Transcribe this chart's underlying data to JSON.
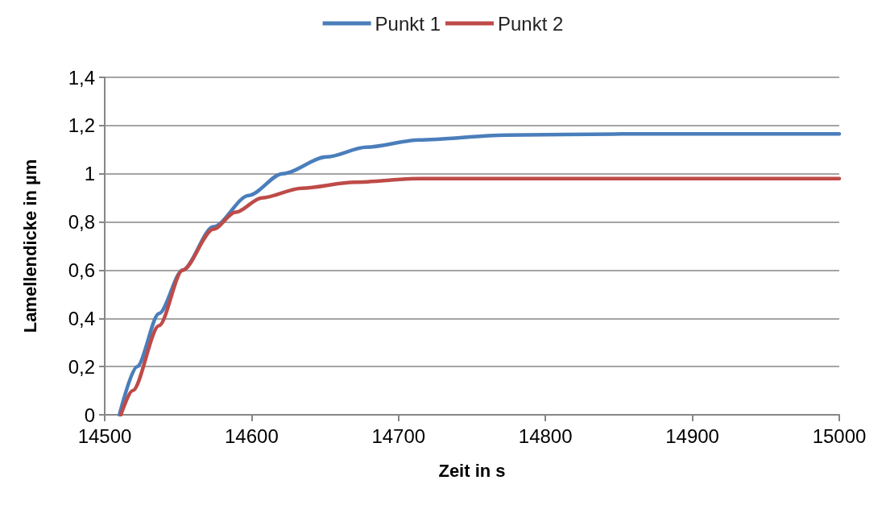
{
  "chart_data": {
    "type": "line",
    "xlabel": "Zeit in s",
    "ylabel": "Lamellendicke in µm",
    "xlim": [
      14500,
      15000
    ],
    "xticks": [
      14500,
      14600,
      14700,
      14800,
      14900,
      15000
    ],
    "ylim": [
      0,
      1.4
    ],
    "yticks": [
      {
        "value": 0,
        "label": "0"
      },
      {
        "value": 0.2,
        "label": "0,2"
      },
      {
        "value": 0.4,
        "label": "0,4"
      },
      {
        "value": 0.6,
        "label": "0,6"
      },
      {
        "value": 0.8,
        "label": "0,8"
      },
      {
        "value": 1,
        "label": "1"
      },
      {
        "value": 1.2,
        "label": "1,2"
      },
      {
        "value": 1.4,
        "label": "1,4"
      }
    ],
    "grid": "y",
    "legend": "top",
    "marker": "none",
    "line_style": "solid",
    "series": [
      {
        "name": "Punkt 1",
        "color": "#4a7ebb",
        "x": [
          14510,
          14522,
          14537,
          14553,
          14574,
          14598,
          14621,
          14651,
          14678,
          14714,
          14773,
          14852,
          14930,
          15000
        ],
        "values": [
          0,
          0.2,
          0.42,
          0.6,
          0.78,
          0.91,
          1,
          1.07,
          1.11,
          1.14,
          1.16,
          1.165,
          1.165,
          1.165
        ]
      },
      {
        "name": "Punkt 2",
        "color": "#be4b48",
        "x": [
          14511,
          14519,
          14537,
          14553,
          14574,
          14589,
          14607,
          14634,
          14670,
          14714,
          14800,
          14900,
          15000
        ],
        "values": [
          0,
          0.1,
          0.37,
          0.6,
          0.77,
          0.84,
          0.9,
          0.94,
          0.965,
          0.98,
          0.98,
          0.98,
          0.98
        ]
      }
    ]
  }
}
